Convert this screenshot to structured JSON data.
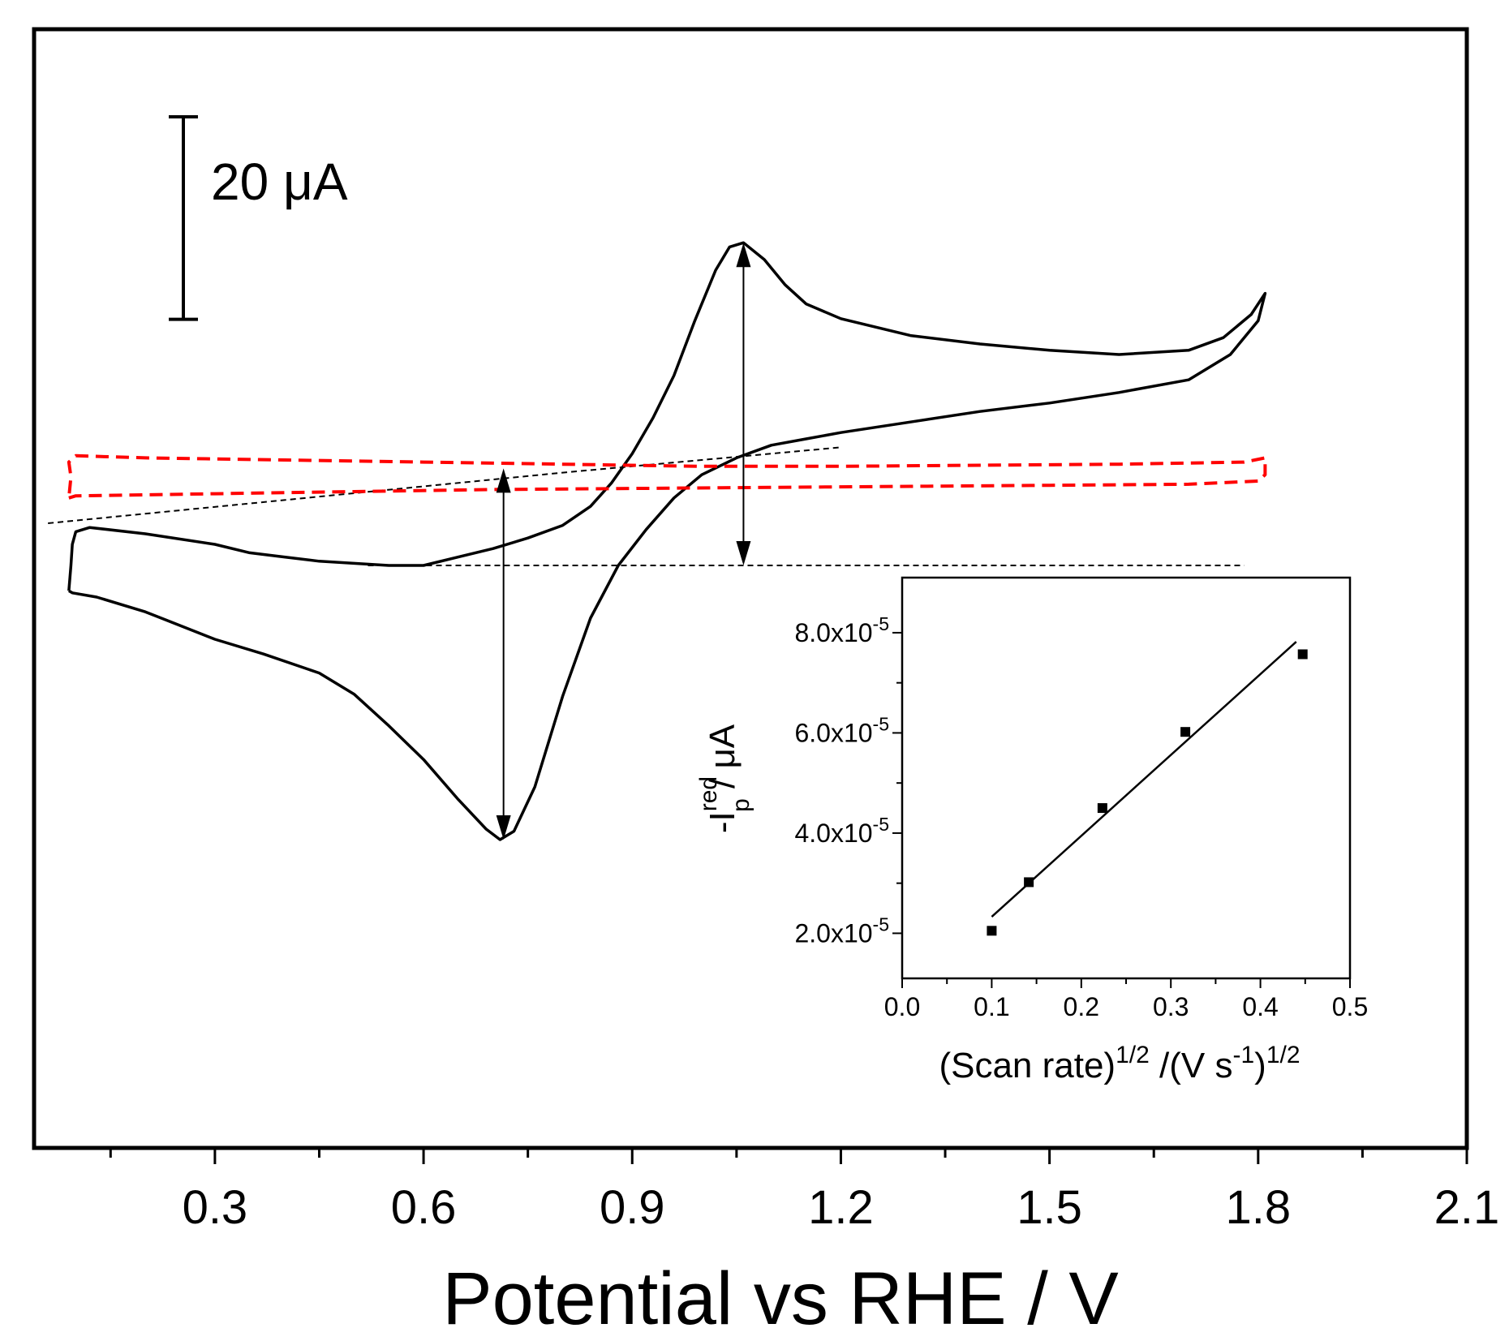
{
  "chart_data": [
    {
      "type": "line",
      "title": "",
      "xlabel": "Potential vs RHE / V",
      "ylabel": "",
      "xlim": [
        0.04,
        2.1
      ],
      "x_ticks": [
        "0.3",
        "0.6",
        "0.9",
        "1.2",
        "1.5",
        "1.8",
        "2.1"
      ],
      "y_ticks_shown": false,
      "scale_bar_label": "20 μA",
      "scale_bar_value": 20,
      "series": [
        {
          "color": "#000000",
          "style": "solid",
          "points": [
            [
              0.09,
              -32
            ],
            [
              0.095,
              -33
            ],
            [
              0.13,
              -35
            ],
            [
              0.2,
              -42
            ],
            [
              0.3,
              -55
            ],
            [
              0.37,
              -62
            ],
            [
              0.45,
              -71
            ],
            [
              0.5,
              -81
            ],
            [
              0.55,
              -96
            ],
            [
              0.6,
              -112
            ],
            [
              0.65,
              -131
            ],
            [
              0.69,
              -145
            ],
            [
              0.71,
              -150
            ],
            [
              0.73,
              -146
            ],
            [
              0.76,
              -125
            ],
            [
              0.8,
              -82
            ],
            [
              0.84,
              -45
            ],
            [
              0.88,
              -20
            ],
            [
              0.92,
              -3
            ],
            [
              0.96,
              12
            ],
            [
              1.0,
              23
            ],
            [
              1.05,
              31
            ],
            [
              1.1,
              37
            ],
            [
              1.15,
              40
            ],
            [
              1.2,
              43
            ],
            [
              1.3,
              48
            ],
            [
              1.4,
              53
            ],
            [
              1.5,
              57
            ],
            [
              1.6,
              62
            ],
            [
              1.7,
              68
            ],
            [
              1.76,
              80
            ],
            [
              1.8,
              96
            ],
            [
              1.81,
              109
            ],
            [
              1.79,
              99
            ],
            [
              1.75,
              88
            ],
            [
              1.7,
              82
            ],
            [
              1.6,
              80
            ],
            [
              1.5,
              82
            ],
            [
              1.4,
              85
            ],
            [
              1.3,
              89
            ],
            [
              1.2,
              97
            ],
            [
              1.15,
              104
            ],
            [
              1.12,
              113
            ],
            [
              1.09,
              125
            ],
            [
              1.06,
              133
            ],
            [
              1.04,
              131
            ],
            [
              1.02,
              120
            ],
            [
              0.99,
              96
            ],
            [
              0.96,
              70
            ],
            [
              0.93,
              50
            ],
            [
              0.9,
              33
            ],
            [
              0.87,
              19
            ],
            [
              0.84,
              8
            ],
            [
              0.8,
              -1
            ],
            [
              0.75,
              -7
            ],
            [
              0.7,
              -12
            ],
            [
              0.65,
              -16
            ],
            [
              0.6,
              -20
            ],
            [
              0.55,
              -20
            ],
            [
              0.5,
              -19
            ],
            [
              0.45,
              -18
            ],
            [
              0.4,
              -16
            ],
            [
              0.35,
              -14
            ],
            [
              0.3,
              -10
            ],
            [
              0.2,
              -5
            ],
            [
              0.12,
              -2
            ],
            [
              0.1,
              -4
            ],
            [
              0.095,
              -10
            ],
            [
              0.093,
              -20
            ],
            [
              0.09,
              -32
            ]
          ]
        },
        {
          "color": "#ff0000",
          "style": "dashed",
          "points": [
            [
              0.09,
              12
            ],
            [
              0.1,
              13
            ],
            [
              0.3,
              14
            ],
            [
              0.5,
              15
            ],
            [
              0.7,
              16
            ],
            [
              0.9,
              16.5
            ],
            [
              1.1,
              17
            ],
            [
              1.3,
              17.5
            ],
            [
              1.5,
              18
            ],
            [
              1.7,
              18.5
            ],
            [
              1.8,
              20
            ],
            [
              1.81,
              23
            ],
            [
              1.81,
              31
            ],
            [
              1.78,
              29
            ],
            [
              1.6,
              28
            ],
            [
              1.4,
              27.5
            ],
            [
              1.2,
              27
            ],
            [
              1.0,
              27
            ],
            [
              0.8,
              28
            ],
            [
              0.6,
              29
            ],
            [
              0.4,
              30
            ],
            [
              0.2,
              31
            ],
            [
              0.1,
              32
            ],
            [
              0.09,
              29
            ],
            [
              0.093,
              22
            ],
            [
              0.09,
              12
            ]
          ]
        }
      ],
      "baselines": [
        {
          "style": "dashed",
          "points": [
            [
              0.06,
              0
            ],
            [
              0.4,
              11
            ],
            [
              0.8,
              24
            ],
            [
              1.2,
              36
            ]
          ]
        },
        {
          "style": "dashed",
          "points": [
            [
              0.52,
              -20
            ],
            [
              1.78,
              -20
            ]
          ]
        }
      ],
      "peak_markers": [
        {
          "x": 0.715,
          "y1": 26,
          "y2": -150
        },
        {
          "x": 1.06,
          "y1": 133,
          "y2": -20
        }
      ]
    },
    {
      "type": "scatter",
      "title": "",
      "xlabel_main": "(Scan rate)",
      "xlabel_sup1": "1/2",
      "xlabel_mid": " /(V s",
      "xlabel_sup2": "-1",
      "xlabel_end": ")",
      "xlabel_sup3": "1/2",
      "ylabel_main": "-I",
      "ylabel_sup": "red",
      "ylabel_sub": "p",
      "ylabel_end": " / μA",
      "xlim": [
        0.0,
        0.5
      ],
      "ylim": [
        1.1e-05,
        9.1e-05
      ],
      "x_ticks": [
        "0.0",
        "0.1",
        "0.2",
        "0.3",
        "0.4",
        "0.5"
      ],
      "y_ticks": [
        {
          "mantissa": "2.0x10",
          "exp": "-5",
          "value": 2e-05
        },
        {
          "mantissa": "4.0x10",
          "exp": "-5",
          "value": 4e-05
        },
        {
          "mantissa": "6.0x10",
          "exp": "-5",
          "value": 6e-05
        },
        {
          "mantissa": "8.0x10",
          "exp": "-5",
          "value": 8e-05
        }
      ],
      "x": [
        0.1,
        0.1414,
        0.2236,
        0.3162,
        0.4472
      ],
      "y": [
        2.05e-05,
        3.02e-05,
        4.5e-05,
        6.02e-05,
        7.57e-05
      ],
      "fit_line": [
        [
          0.1,
          2.33e-05
        ],
        [
          0.44,
          7.82e-05
        ]
      ]
    }
  ]
}
